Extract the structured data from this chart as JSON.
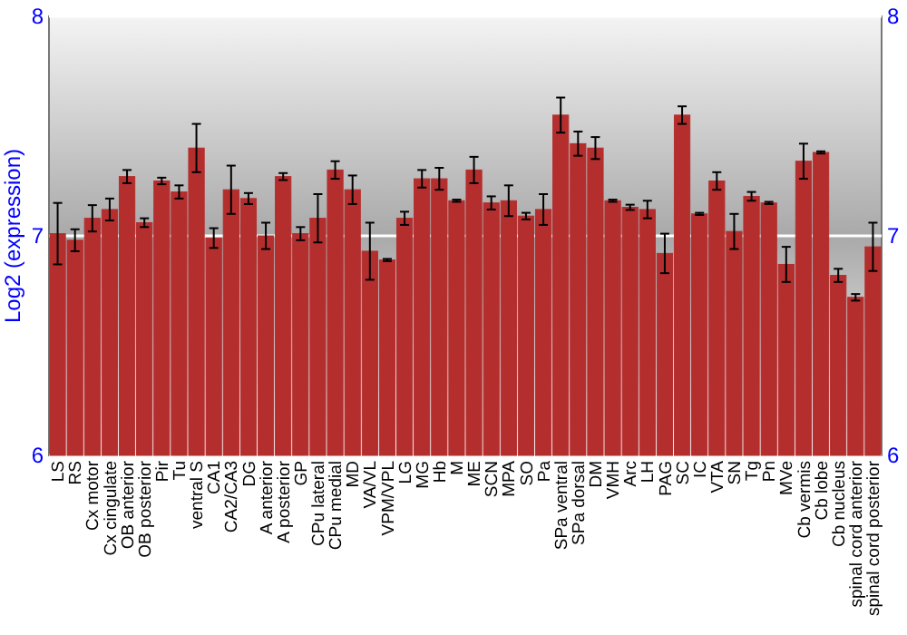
{
  "chart_data": {
    "type": "bar",
    "ylabel": "Log2 (expression)",
    "categories": [
      "LS",
      "RS",
      "Cx motor",
      "Cx cingulate",
      "OB anterior",
      "OB posterior",
      "Pir",
      "Tu",
      "ventral S",
      "CA1",
      "CA2/CA3",
      "DG",
      "A anterior",
      "A posterior",
      "GP",
      "CPu lateral",
      "CPu medial",
      "MD",
      "VA/VL",
      "VPM/VPL",
      "LG",
      "MG",
      "Hb",
      "M",
      "ME",
      "SCN",
      "MPA",
      "SO",
      "Pa",
      "SPa ventral",
      "SPa dorsal",
      "DM",
      "VMH",
      "Arc",
      "LH",
      "PAG",
      "SC",
      "IC",
      "VTA",
      "SN",
      "Tg",
      "Pn",
      "MVe",
      "Cb vermis",
      "Cb lobe",
      "Cb nucleus",
      "spinal cord anterior",
      "spinal cord posterior"
    ],
    "values": [
      7.01,
      6.98,
      7.08,
      7.12,
      7.27,
      7.06,
      7.25,
      7.2,
      7.4,
      6.99,
      7.21,
      7.17,
      7.0,
      7.27,
      7.01,
      7.08,
      7.3,
      7.21,
      6.93,
      6.89,
      7.08,
      7.26,
      7.26,
      7.16,
      7.3,
      7.15,
      7.16,
      7.09,
      7.12,
      7.55,
      7.42,
      7.4,
      7.16,
      7.13,
      7.12,
      6.92,
      7.55,
      7.1,
      7.25,
      7.02,
      7.18,
      7.15,
      6.87,
      7.34,
      7.38,
      6.82,
      6.72,
      6.95
    ],
    "errors": [
      0.14,
      0.05,
      0.06,
      0.05,
      0.03,
      0.02,
      0.015,
      0.03,
      0.11,
      0.045,
      0.11,
      0.025,
      0.06,
      0.016,
      0.03,
      0.11,
      0.04,
      0.065,
      0.13,
      0.005,
      0.03,
      0.04,
      0.05,
      0.005,
      0.06,
      0.03,
      0.07,
      0.015,
      0.07,
      0.08,
      0.055,
      0.05,
      0.005,
      0.012,
      0.04,
      0.09,
      0.04,
      0.005,
      0.04,
      0.08,
      0.02,
      0.005,
      0.08,
      0.08,
      0.005,
      0.03,
      0.015,
      0.11
    ],
    "color": "#b52e2e",
    "ylim": [
      6,
      8
    ],
    "yticks": [
      6,
      7,
      8
    ],
    "y2lim": [
      6,
      8
    ],
    "y2ticks": [
      6,
      7,
      8
    ],
    "grid": "y"
  }
}
